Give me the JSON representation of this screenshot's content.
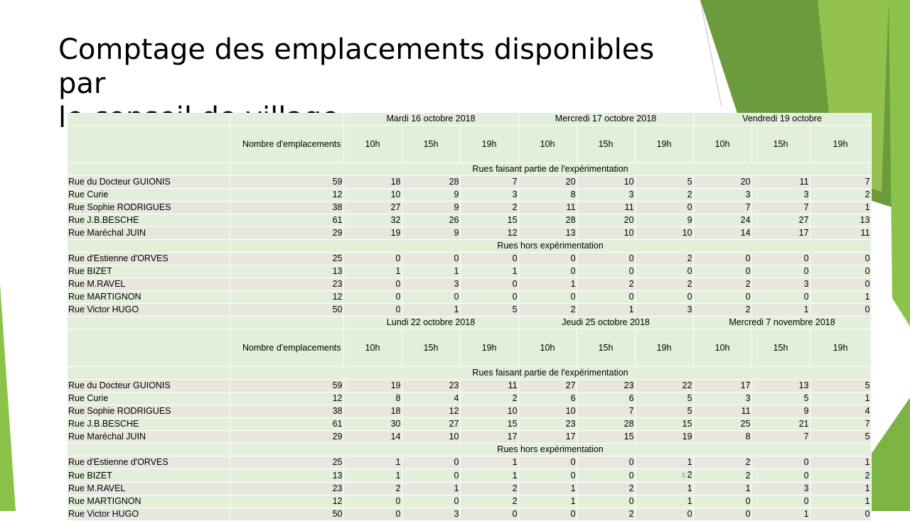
{
  "slide": {
    "title_line1": "Comptage des emplacements disponibles par",
    "title_line2": "le conseil de village"
  },
  "theme": {
    "accent_green": "#8bc34a",
    "dark_green": "#6a9b3c",
    "row_green": "#e2efda",
    "row_beige": "#e7e6df"
  },
  "table": {
    "times": [
      "10h",
      "15h",
      "19h"
    ],
    "spots_label": "Nombre d'emplacements",
    "exp_label": "Rues faisant partie de l'expérimentation",
    "non_exp_label": "Rues hors expérimentation",
    "blocks": [
      {
        "dates": [
          "Mardi 16 octobre 2018",
          "Mercredi 17 octobre 2018",
          "Vendredi 19 octobre"
        ],
        "experimental": [
          {
            "name": "Rue du Docteur GUIONIS",
            "spots": "59",
            "vals": [
              "18",
              "28",
              "7",
              "20",
              "10",
              "5",
              "20",
              "11",
              "7"
            ]
          },
          {
            "name": "Rue Curie",
            "spots": "12",
            "vals": [
              "10",
              "9",
              "3",
              "8",
              "3",
              "2",
              "3",
              "3",
              "2"
            ]
          },
          {
            "name": "Rue Sophie RODRIGUES",
            "spots": "38",
            "vals": [
              "27",
              "9",
              "2",
              "11",
              "11",
              "0",
              "7",
              "7",
              "1"
            ]
          },
          {
            "name": "Rue J.B.BESCHE",
            "spots": "61",
            "vals": [
              "32",
              "26",
              "15",
              "28",
              "20",
              "9",
              "24",
              "27",
              "13"
            ]
          },
          {
            "name": "Rue Maréchal JUIN",
            "spots": "29",
            "vals": [
              "19",
              "9",
              "12",
              "13",
              "10",
              "10",
              "14",
              "17",
              "11"
            ]
          }
        ],
        "non_experimental": [
          {
            "name": "Rue d'Estienne d'ORVES",
            "spots": "25",
            "vals": [
              "0",
              "0",
              "0",
              "0",
              "0",
              "2",
              "0",
              "0",
              "0"
            ]
          },
          {
            "name": "Rue BIZET",
            "spots": "13",
            "vals": [
              "1",
              "1",
              "1",
              "0",
              "0",
              "0",
              "0",
              "0",
              "0"
            ]
          },
          {
            "name": "Rue M.RAVEL",
            "spots": "23",
            "vals": [
              "0",
              "3",
              "0",
              "1",
              "2",
              "2",
              "2",
              "3",
              "0"
            ]
          },
          {
            "name": "Rue MARTIGNON",
            "spots": "12",
            "vals": [
              "0",
              "0",
              "0",
              "0",
              "0",
              "0",
              "0",
              "0",
              "1"
            ]
          },
          {
            "name": "Rue Victor HUGO",
            "spots": "50",
            "vals": [
              "0",
              "1",
              "5",
              "2",
              "1",
              "3",
              "2",
              "1",
              "0"
            ]
          }
        ]
      },
      {
        "dates": [
          "Lundi 22 octobre 2018",
          "Jeudi 25 octobre 2018",
          "Mercredi 7 novembre 2018"
        ],
        "experimental": [
          {
            "name": "Rue du Docteur GUIONIS",
            "spots": "59",
            "vals": [
              "19",
              "23",
              "11",
              "27",
              "23",
              "22",
              "17",
              "13",
              "5"
            ]
          },
          {
            "name": "Rue Curie",
            "spots": "12",
            "vals": [
              "8",
              "4",
              "2",
              "6",
              "6",
              "5",
              "3",
              "5",
              "1"
            ]
          },
          {
            "name": "Rue Sophie RODRIGUES",
            "spots": "38",
            "vals": [
              "18",
              "12",
              "10",
              "10",
              "7",
              "5",
              "11",
              "9",
              "4"
            ]
          },
          {
            "name": "Rue J.B.BESCHE",
            "spots": "61",
            "vals": [
              "30",
              "27",
              "15",
              "23",
              "28",
              "15",
              "25",
              "21",
              "7"
            ]
          },
          {
            "name": "Rue Maréchal JUIN",
            "spots": "29",
            "vals": [
              "14",
              "10",
              "17",
              "17",
              "15",
              "19",
              "8",
              "7",
              "5"
            ]
          }
        ],
        "non_experimental": [
          {
            "name": "Rue d'Estienne d'ORVES",
            "spots": "25",
            "vals": [
              "1",
              "0",
              "1",
              "0",
              "0",
              "1",
              "2",
              "0",
              "1"
            ]
          },
          {
            "name": "Rue BIZET",
            "spots": "13",
            "vals": [
              "1",
              "0",
              "1",
              "0",
              "0",
              "2",
              "2",
              "0",
              "2"
            ],
            "note": {
              "col": 5,
              "text": "5"
            }
          },
          {
            "name": "Rue M.RAVEL",
            "spots": "23",
            "vals": [
              "2",
              "1",
              "2",
              "1",
              "2",
              "1",
              "1",
              "3",
              "1"
            ]
          },
          {
            "name": "Rue MARTIGNON",
            "spots": "12",
            "vals": [
              "0",
              "0",
              "2",
              "1",
              "0",
              "1",
              "0",
              "0",
              "1"
            ]
          },
          {
            "name": "Rue Victor HUGO",
            "spots": "50",
            "vals": [
              "0",
              "3",
              "0",
              "0",
              "2",
              "0",
              "0",
              "1",
              "0"
            ]
          }
        ]
      }
    ]
  }
}
